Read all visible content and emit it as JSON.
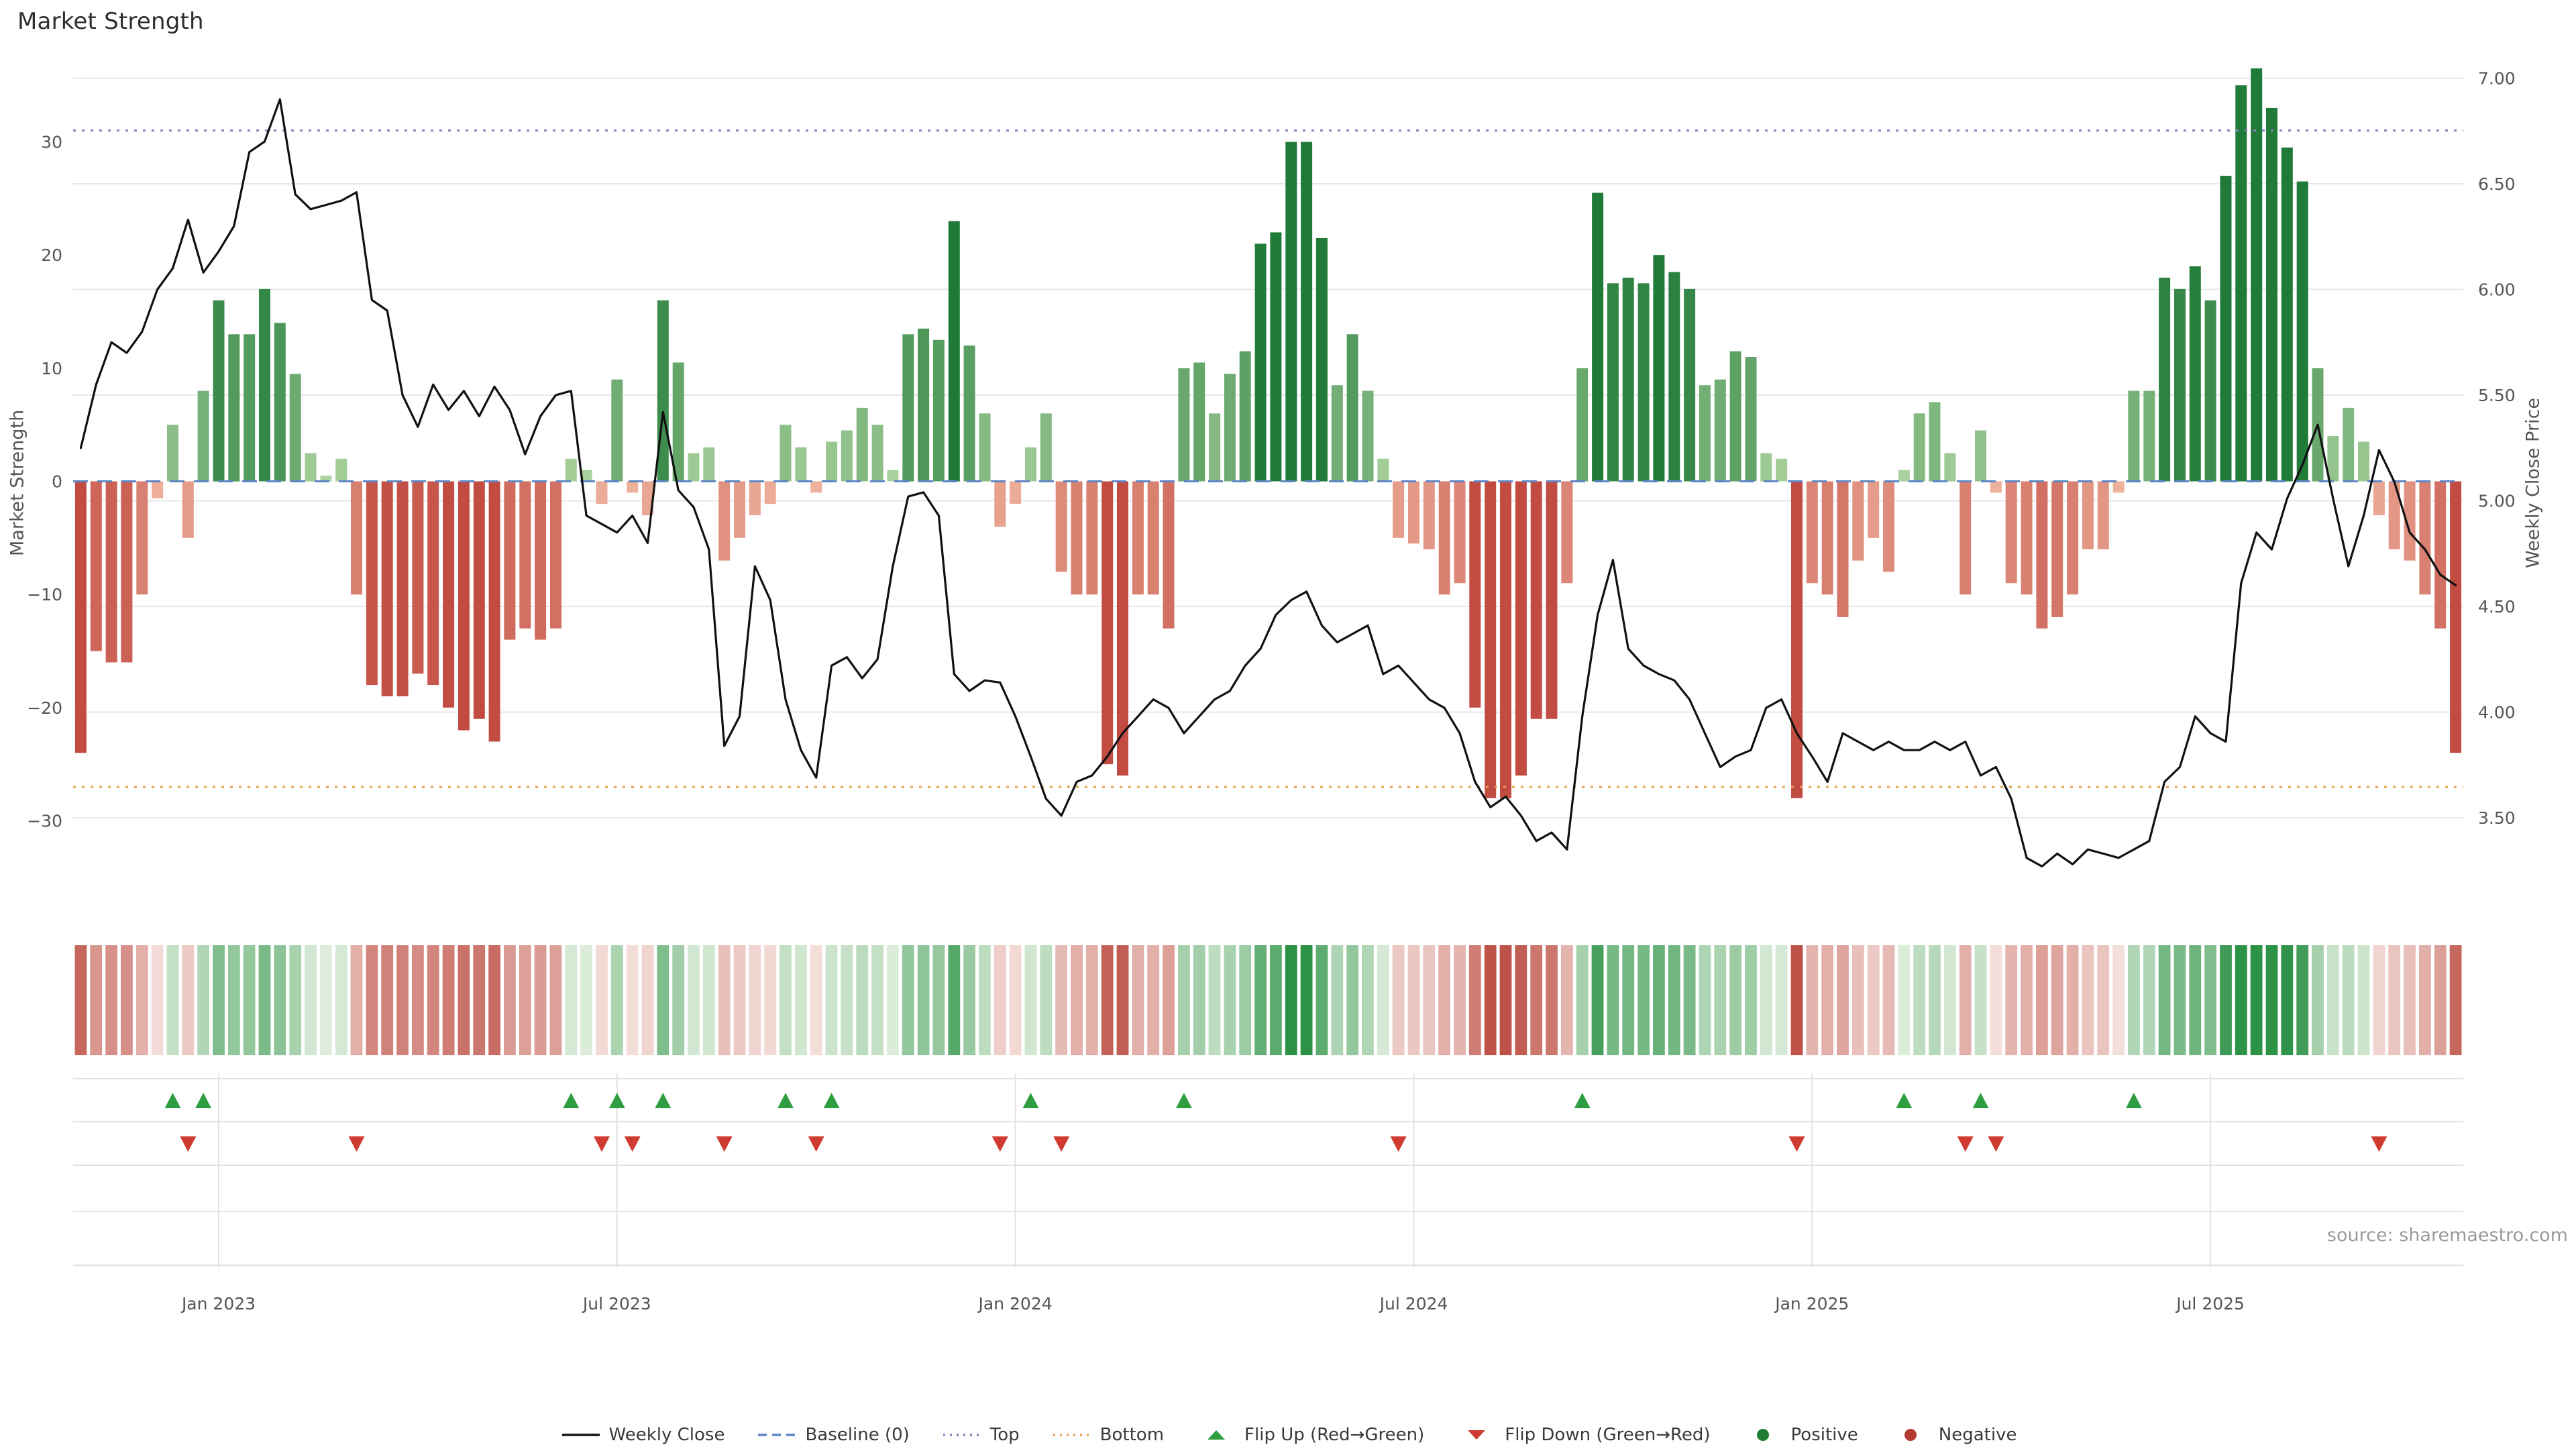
{
  "title": "Market Strength",
  "source": "source: sharemaestro.com",
  "colors": {
    "line": "#111111",
    "baseline": "#5e86c4",
    "top": "#8d7cc2",
    "bottom": "#e5a14f",
    "grid": "#e7e7e7",
    "panel_grid": "#e2e2e2",
    "positive_dark": "#207a38",
    "positive_light": "#b0d6a2",
    "negative_dark": "#c24c42",
    "negative_light": "#f0b6a0",
    "heat_pos_dark": "#2c9246",
    "heat_pos_light": "#e1efde",
    "heat_neg_dark": "#ba483e",
    "heat_neg_light": "#f6e3df",
    "flip_up": "#2f9e41",
    "flip_down": "#cf3b30",
    "tick_text": "#555555",
    "source_text": "#9a9a9a"
  },
  "chart_data": {
    "type": "combo: bar (market strength) + line (weekly close), with heatmap strip and flip markers",
    "weeks": 156,
    "left_axis": {
      "label": "Market Strength",
      "ticks": [
        -30,
        -20,
        -10,
        0,
        10,
        20,
        30
      ],
      "range": [
        -37.2,
        37.5
      ]
    },
    "right_axis": {
      "label": "Weekly Close Price",
      "ticks": [
        3.5,
        4.0,
        4.5,
        5.0,
        5.5,
        6.0,
        6.5,
        7.0
      ],
      "range": [
        3.1,
        7.1
      ]
    },
    "x_ticks": [
      {
        "label": "Jan 2023",
        "week": 9
      },
      {
        "label": "Jul 2023",
        "week": 35
      },
      {
        "label": "Jan 2024",
        "week": 61
      },
      {
        "label": "Jul 2024",
        "week": 87
      },
      {
        "label": "Jan 2025",
        "week": 113
      },
      {
        "label": "Jul 2025",
        "week": 139
      }
    ],
    "thresholds": {
      "baseline": 0,
      "top": 31,
      "bottom": -27
    },
    "series": [
      {
        "name": "Market Strength",
        "type": "bar",
        "axis": "left",
        "values": [
          -24,
          -15,
          -16,
          -16,
          -10,
          -1.5,
          5,
          -5,
          8,
          16,
          13,
          13,
          17,
          14,
          9.5,
          2.5,
          0.5,
          2,
          -10,
          -18,
          -19,
          -19,
          -17,
          -18,
          -20,
          -22,
          -21,
          -23,
          -14,
          -13,
          -14,
          -13,
          2,
          1,
          -2,
          9,
          -1,
          -3,
          16,
          10.5,
          2.5,
          3,
          -7,
          -5,
          -3,
          -2,
          5,
          3,
          -1,
          3.5,
          4.5,
          6.5,
          5,
          1,
          13,
          13.5,
          12.5,
          23,
          12,
          6,
          -4,
          -2,
          3,
          6,
          -8,
          -10,
          -10,
          -25,
          -26,
          -10,
          -10,
          -13,
          10,
          10.5,
          6,
          9.5,
          11.5,
          21,
          22,
          30,
          30,
          21.5,
          8.5,
          13,
          8,
          2,
          -5,
          -5.5,
          -6,
          -10,
          -9,
          -20,
          -28,
          -28,
          -26,
          -21,
          -21,
          -9,
          10,
          25.5,
          17.5,
          18,
          17.5,
          20,
          18.5,
          17,
          8.5,
          9,
          11.5,
          11,
          2.5,
          2,
          -28,
          -9,
          -10,
          -12,
          -7,
          -5,
          -8,
          1,
          6,
          7,
          2.5,
          -10,
          4.5,
          -1,
          -9,
          -10,
          -13,
          -12,
          -10,
          -6,
          -6,
          -1,
          8,
          8,
          18,
          17,
          19,
          16,
          27,
          35,
          36.5,
          33,
          29.5,
          26.5,
          10,
          4,
          6.5,
          3.5,
          -3,
          -6,
          -7,
          -10,
          -13,
          -24
        ]
      },
      {
        "name": "Weekly Close",
        "type": "line",
        "axis": "right",
        "values": [
          5.25,
          5.55,
          5.75,
          5.7,
          5.8,
          6.0,
          6.1,
          6.33,
          6.08,
          6.18,
          6.3,
          6.65,
          6.7,
          6.9,
          6.45,
          6.38,
          6.4,
          6.42,
          6.46,
          5.95,
          5.9,
          5.5,
          5.35,
          5.55,
          5.43,
          5.52,
          5.4,
          5.54,
          5.43,
          5.22,
          5.4,
          5.5,
          5.52,
          4.93,
          4.89,
          4.85,
          4.93,
          4.8,
          5.42,
          5.05,
          4.97,
          4.77,
          3.84,
          3.98,
          4.69,
          4.53,
          4.06,
          3.82,
          3.69,
          4.22,
          4.26,
          4.16,
          4.25,
          4.69,
          5.02,
          5.04,
          4.93,
          4.18,
          4.1,
          4.15,
          4.14,
          3.98,
          3.79,
          3.59,
          3.51,
          3.67,
          3.7,
          3.79,
          3.9,
          3.98,
          4.06,
          4.02,
          3.9,
          3.98,
          4.06,
          4.1,
          4.22,
          4.3,
          4.46,
          4.53,
          4.57,
          4.41,
          4.33,
          4.37,
          4.41,
          4.18,
          4.22,
          4.14,
          4.06,
          4.02,
          3.9,
          3.67,
          3.55,
          3.6,
          3.51,
          3.39,
          3.43,
          3.35,
          3.98,
          4.46,
          4.72,
          4.3,
          4.22,
          4.18,
          4.15,
          4.06,
          3.9,
          3.74,
          3.79,
          3.82,
          4.02,
          4.06,
          3.9,
          3.79,
          3.67,
          3.9,
          3.86,
          3.82,
          3.86,
          3.82,
          3.82,
          3.86,
          3.82,
          3.86,
          3.7,
          3.74,
          3.59,
          3.31,
          3.27,
          3.33,
          3.28,
          3.35,
          3.33,
          3.31,
          3.35,
          3.39,
          3.67,
          3.74,
          3.98,
          3.9,
          3.86,
          4.61,
          4.85,
          4.77,
          5.01,
          5.17,
          5.36,
          5.01,
          4.69,
          4.93,
          5.24,
          5.09,
          4.85,
          4.77,
          4.65,
          4.6
        ]
      }
    ],
    "flip_up_weeks": [
      6,
      8,
      32,
      35,
      38,
      46,
      49,
      62,
      72,
      98,
      119,
      124,
      134
    ],
    "flip_down_weeks": [
      7,
      18,
      34,
      36,
      42,
      48,
      60,
      64,
      86,
      112,
      123,
      125,
      150
    ]
  },
  "legend": [
    {
      "label": "Weekly Close",
      "type": "line",
      "style": "solid",
      "color": "#111111",
      "icon": "weekly-close-line-icon"
    },
    {
      "label": "Baseline (0)",
      "type": "line",
      "style": "dashed",
      "color": "#5e86c4",
      "icon": "baseline-line-icon"
    },
    {
      "label": "Top",
      "type": "line",
      "style": "dotted",
      "color": "#8d7cc2",
      "icon": "top-line-icon"
    },
    {
      "label": "Bottom",
      "type": "line",
      "style": "dotted",
      "color": "#e5a14f",
      "icon": "bottom-line-icon"
    },
    {
      "label": "Flip Up (Red→Green)",
      "type": "triangle-up",
      "color": "#2f9e41",
      "icon": "flip-up-triangle-icon"
    },
    {
      "label": "Flip Down (Green→Red)",
      "type": "triangle-down",
      "color": "#cf3b30",
      "icon": "flip-down-triangle-icon"
    },
    {
      "label": "Positive",
      "type": "circle",
      "color": "#1e7d32",
      "icon": "positive-dot-icon"
    },
    {
      "label": "Negative",
      "type": "circle",
      "color": "#b23a30",
      "icon": "negative-dot-icon"
    }
  ]
}
